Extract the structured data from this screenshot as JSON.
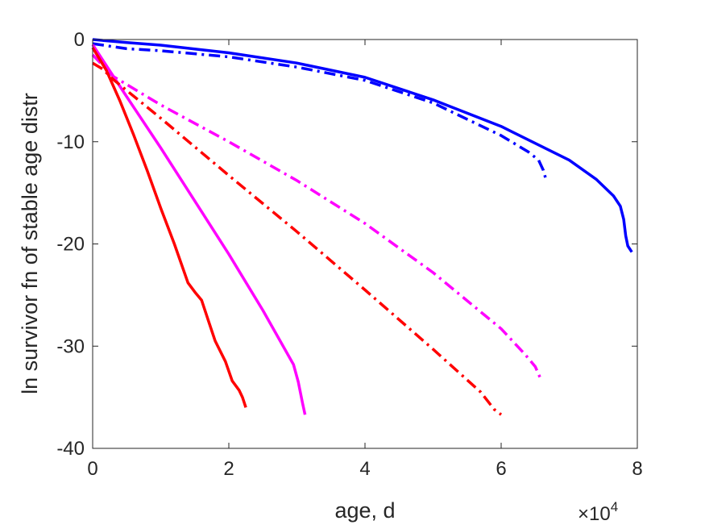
{
  "chart_data": {
    "type": "line",
    "title": "",
    "xlabel": "age, d",
    "ylabel": "ln survivor fn of stable age distr",
    "x_exponent_label": "×10",
    "x_exponent_power": "4",
    "xlim": [
      0,
      80000
    ],
    "ylim": [
      -40,
      0
    ],
    "x_ticks": [
      0,
      20000,
      40000,
      60000,
      80000
    ],
    "x_tick_labels": [
      "0",
      "2",
      "4",
      "6",
      "8"
    ],
    "y_ticks": [
      0,
      -10,
      -20,
      -30,
      -40
    ],
    "y_tick_labels": [
      "0",
      "-10",
      "-20",
      "-30",
      "-40"
    ],
    "grid": false,
    "legend": "none",
    "series": [
      {
        "color": "#0000ff",
        "style": "solid",
        "points": [
          [
            0,
            0
          ],
          [
            5000,
            -0.3
          ],
          [
            10000,
            -0.55
          ],
          [
            20000,
            -1.3
          ],
          [
            30000,
            -2.3
          ],
          [
            40000,
            -3.7
          ],
          [
            50000,
            -5.9
          ],
          [
            60000,
            -8.5
          ],
          [
            70000,
            -11.8
          ],
          [
            74000,
            -13.7
          ],
          [
            76500,
            -15.3
          ],
          [
            77500,
            -16.3
          ],
          [
            78000,
            -17.6
          ],
          [
            78300,
            -19.2
          ],
          [
            78600,
            -20.2
          ],
          [
            79200,
            -20.8
          ]
        ]
      },
      {
        "color": "#0000ff",
        "style": "dashdot",
        "points": [
          [
            0,
            -0.4
          ],
          [
            5000,
            -0.9
          ],
          [
            10000,
            -1.1
          ],
          [
            20000,
            -1.7
          ],
          [
            30000,
            -2.7
          ],
          [
            40000,
            -4.0
          ],
          [
            50000,
            -6.2
          ],
          [
            60000,
            -9.4
          ],
          [
            64000,
            -11.0
          ],
          [
            65500,
            -11.8
          ],
          [
            66200,
            -12.8
          ],
          [
            66500,
            -13.5
          ]
        ]
      },
      {
        "color": "#ff00ff",
        "style": "dashdot",
        "points": [
          [
            0,
            -1.5
          ],
          [
            3000,
            -3.6
          ],
          [
            10000,
            -6.4
          ],
          [
            20000,
            -10.0
          ],
          [
            30000,
            -13.8
          ],
          [
            40000,
            -18.0
          ],
          [
            50000,
            -22.8
          ],
          [
            60000,
            -28.3
          ],
          [
            63500,
            -30.8
          ],
          [
            65000,
            -32.0
          ],
          [
            65800,
            -33.2
          ]
        ]
      },
      {
        "color": "#ff00ff",
        "style": "solid",
        "points": [
          [
            0,
            -0.5
          ],
          [
            5000,
            -5.6
          ],
          [
            10000,
            -10.6
          ],
          [
            15000,
            -15.8
          ],
          [
            20000,
            -21.0
          ],
          [
            25000,
            -26.5
          ],
          [
            29500,
            -31.8
          ],
          [
            30200,
            -33.5
          ],
          [
            30800,
            -35.5
          ],
          [
            31200,
            -36.7
          ]
        ]
      },
      {
        "color": "#ff0000",
        "style": "dashdot",
        "points": [
          [
            0,
            -2.3
          ],
          [
            1500,
            -2.9
          ],
          [
            3000,
            -3.9
          ],
          [
            10000,
            -7.7
          ],
          [
            20000,
            -13.3
          ],
          [
            30000,
            -18.8
          ],
          [
            40000,
            -24.5
          ],
          [
            50000,
            -30.3
          ],
          [
            57000,
            -34.5
          ],
          [
            59000,
            -36.2
          ],
          [
            60000,
            -36.7
          ]
        ]
      },
      {
        "color": "#ff0000",
        "style": "solid",
        "points": [
          [
            0,
            -0.8
          ],
          [
            2000,
            -3.0
          ],
          [
            4000,
            -6.0
          ],
          [
            6000,
            -9.3
          ],
          [
            8000,
            -12.8
          ],
          [
            10000,
            -16.5
          ],
          [
            12000,
            -20.0
          ],
          [
            14000,
            -23.8
          ],
          [
            15000,
            -24.7
          ],
          [
            16000,
            -25.5
          ],
          [
            17000,
            -27.5
          ],
          [
            18000,
            -29.5
          ],
          [
            19500,
            -31.5
          ],
          [
            20500,
            -33.4
          ],
          [
            21500,
            -34.3
          ],
          [
            22000,
            -35.0
          ],
          [
            22500,
            -36.0
          ]
        ]
      }
    ]
  }
}
